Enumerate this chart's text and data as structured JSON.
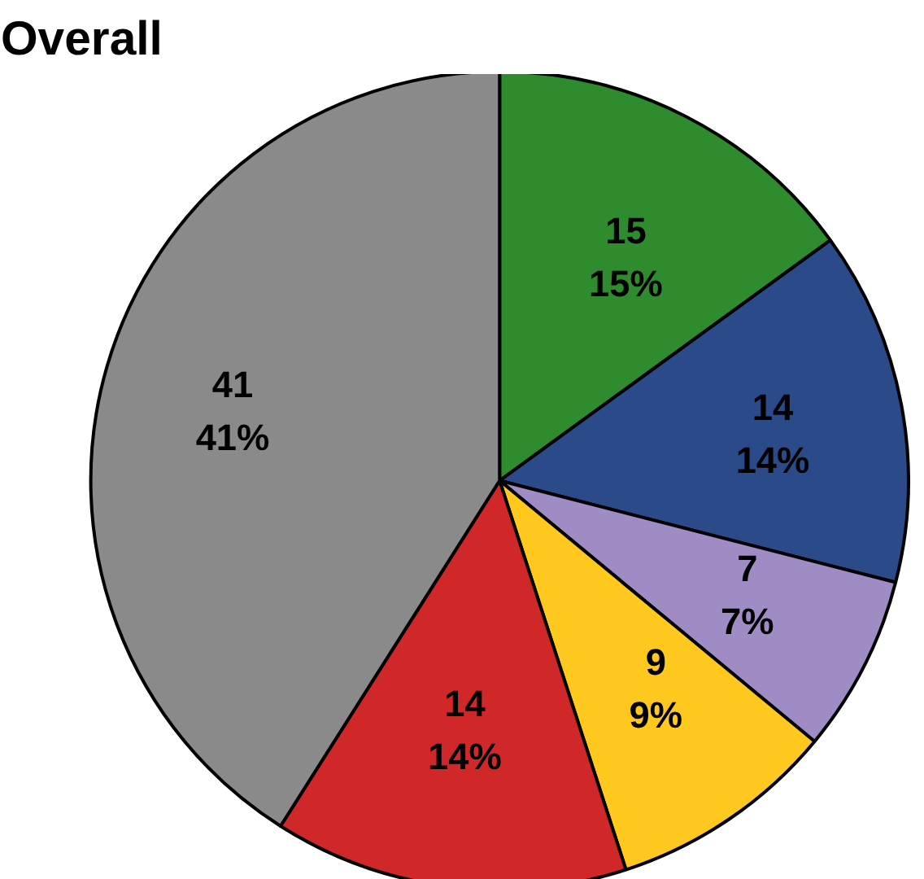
{
  "chart_data": {
    "type": "pie",
    "title": "Overall",
    "categories": [
      null,
      null,
      null,
      null,
      null,
      null
    ],
    "values": [
      15,
      14,
      7,
      9,
      14,
      41
    ],
    "colors": [
      "#2e8b2e",
      "#2b4a8a",
      "#a08cc4",
      "#ffc81e",
      "#d02828",
      "#8a8a8a"
    ],
    "value_labels": [
      "15\n15%",
      "14\n14%",
      "7\n7%",
      "9\n9%",
      "14\n14%",
      "41\n41%"
    ]
  }
}
